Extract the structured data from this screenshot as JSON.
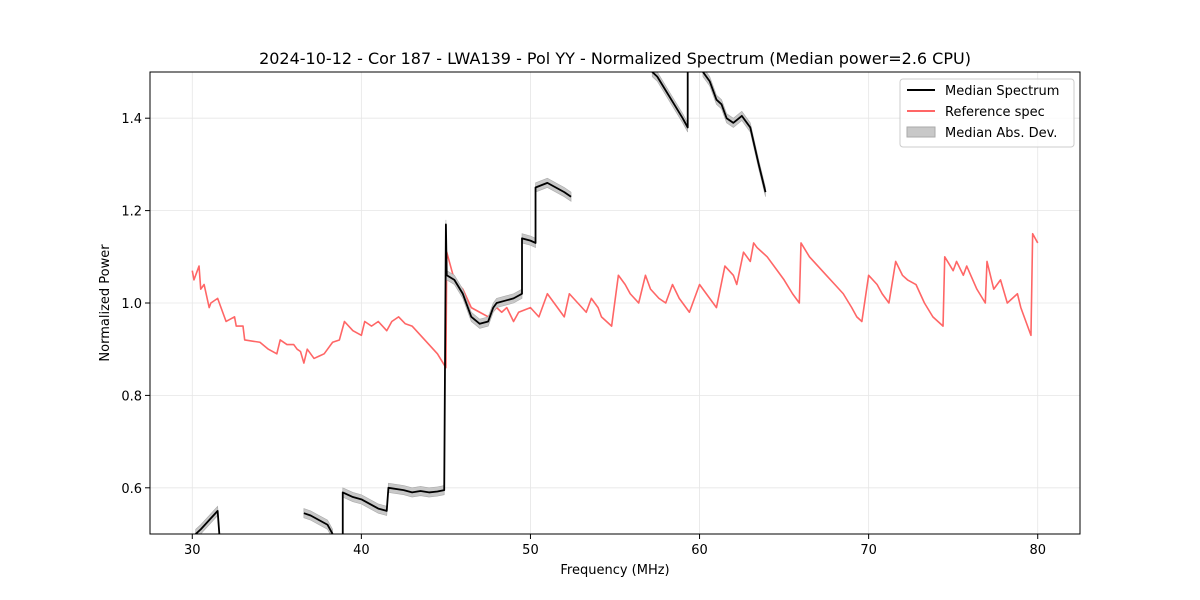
{
  "chart_data": {
    "type": "line",
    "title": "2024-10-12 - Cor 187 - LWA139 - Pol YY - Normalized Spectrum (Median power=2.6 CPU)",
    "xlabel": "Frequency (MHz)",
    "ylabel": "Normalized Power",
    "xlim": [
      27.5,
      82.5
    ],
    "ylim": [
      0.5,
      1.5
    ],
    "xticks": [
      30,
      40,
      50,
      60,
      70,
      80
    ],
    "yticks": [
      0.6,
      0.8,
      1.0,
      1.2,
      1.4
    ],
    "xtick_labels": [
      "30",
      "40",
      "50",
      "60",
      "70",
      "80"
    ],
    "ytick_labels": [
      "0.6",
      "0.8",
      "1.0",
      "1.2",
      "1.4"
    ],
    "grid": true,
    "legend_position": "upper right",
    "series": [
      {
        "name": "Median Spectrum",
        "color": "#000000",
        "segments": [
          [
            [
              30.2,
              0.5
            ],
            [
              30.5,
              0.51
            ],
            [
              31.0,
              0.53
            ],
            [
              31.5,
              0.55
            ],
            [
              31.6,
              0.5
            ]
          ],
          [
            [
              36.6,
              0.545
            ],
            [
              37.0,
              0.54
            ],
            [
              37.5,
              0.53
            ],
            [
              38.0,
              0.52
            ],
            [
              38.3,
              0.5
            ]
          ],
          [
            [
              38.9,
              0.5
            ],
            [
              38.9,
              0.59
            ],
            [
              39.5,
              0.58
            ],
            [
              40.0,
              0.575
            ],
            [
              40.5,
              0.565
            ],
            [
              41.0,
              0.555
            ],
            [
              41.5,
              0.55
            ],
            [
              41.6,
              0.6
            ],
            [
              42.5,
              0.595
            ],
            [
              43.0,
              0.59
            ],
            [
              43.5,
              0.593
            ],
            [
              44.0,
              0.59
            ],
            [
              44.5,
              0.592
            ],
            [
              44.9,
              0.595
            ],
            [
              45.0,
              1.17
            ],
            [
              45.05,
              1.06
            ],
            [
              45.5,
              1.05
            ],
            [
              46.0,
              1.02
            ],
            [
              46.5,
              0.97
            ],
            [
              47.0,
              0.955
            ],
            [
              47.5,
              0.96
            ],
            [
              47.8,
              0.99
            ],
            [
              48.0,
              1.0
            ],
            [
              48.5,
              1.005
            ],
            [
              49.0,
              1.01
            ],
            [
              49.5,
              1.02
            ],
            [
              49.5,
              1.14
            ],
            [
              50.0,
              1.135
            ],
            [
              50.3,
              1.13
            ],
            [
              50.3,
              1.25
            ],
            [
              51.0,
              1.26
            ],
            [
              51.5,
              1.25
            ],
            [
              52.0,
              1.24
            ],
            [
              52.4,
              1.23
            ]
          ],
          [
            [
              57.2,
              1.5
            ],
            [
              57.5,
              1.49
            ],
            [
              58.0,
              1.46
            ],
            [
              58.5,
              1.43
            ],
            [
              59.0,
              1.4
            ],
            [
              59.3,
              1.38
            ],
            [
              59.3,
              1.5
            ]
          ],
          [
            [
              60.2,
              1.5
            ],
            [
              60.6,
              1.48
            ],
            [
              61.0,
              1.44
            ],
            [
              61.3,
              1.43
            ],
            [
              61.6,
              1.4
            ],
            [
              62.0,
              1.39
            ],
            [
              62.5,
              1.405
            ],
            [
              63.0,
              1.38
            ],
            [
              63.5,
              1.3
            ],
            [
              63.9,
              1.24
            ]
          ]
        ]
      },
      {
        "name": "Reference spec",
        "color": "#ff6666",
        "x": [
          30.0,
          30.1,
          30.4,
          30.5,
          30.7,
          31.0,
          31.1,
          31.5,
          32.0,
          32.5,
          32.6,
          33.0,
          33.1,
          34.0,
          34.5,
          35.0,
          35.2,
          35.6,
          36.0,
          36.2,
          36.4,
          36.6,
          36.8,
          37.2,
          37.5,
          37.8,
          38.0,
          38.3,
          38.7,
          39.0,
          39.5,
          40.0,
          40.2,
          40.6,
          41.0,
          41.5,
          41.8,
          42.2,
          42.6,
          43.0,
          43.5,
          44.0,
          44.5,
          45.0,
          45.05,
          45.5,
          46.0,
          46.5,
          47.0,
          47.5,
          48.0,
          48.3,
          48.6,
          49.0,
          49.3,
          50.0,
          50.5,
          51.0,
          51.4,
          52.0,
          52.3,
          52.8,
          53.3,
          53.6,
          54.0,
          54.2,
          54.8,
          55.2,
          55.6,
          55.9,
          56.4,
          56.8,
          57.1,
          57.6,
          58.0,
          58.4,
          58.8,
          59.2,
          59.4,
          60.0,
          60.4,
          60.8,
          61.0,
          61.5,
          62.0,
          62.2,
          62.6,
          63.0,
          63.2,
          63.4,
          64.0,
          64.6,
          65.0,
          65.5,
          65.9,
          66.0,
          66.5,
          67.0,
          67.5,
          68.0,
          68.5,
          69.0,
          69.3,
          69.6,
          70.0,
          70.5,
          70.8,
          71.2,
          71.6,
          72.0,
          72.3,
          72.8,
          73.3,
          73.8,
          74.4,
          74.5,
          75.0,
          75.2,
          75.6,
          75.8,
          76.4,
          76.9,
          77.0,
          77.4,
          77.8,
          78.2,
          78.8,
          79.0,
          79.2,
          79.6,
          79.7,
          80.0
        ],
        "y": [
          1.07,
          1.05,
          1.08,
          1.03,
          1.04,
          0.99,
          1.0,
          1.01,
          0.96,
          0.97,
          0.95,
          0.95,
          0.92,
          0.915,
          0.9,
          0.89,
          0.92,
          0.91,
          0.91,
          0.9,
          0.895,
          0.87,
          0.9,
          0.88,
          0.885,
          0.89,
          0.9,
          0.915,
          0.92,
          0.96,
          0.94,
          0.93,
          0.96,
          0.95,
          0.96,
          0.94,
          0.96,
          0.97,
          0.955,
          0.95,
          0.93,
          0.91,
          0.89,
          0.86,
          1.11,
          1.05,
          1.03,
          0.99,
          0.98,
          0.97,
          0.99,
          0.98,
          0.99,
          0.96,
          0.98,
          0.99,
          0.97,
          1.02,
          1.0,
          0.97,
          1.02,
          1.0,
          0.98,
          1.01,
          0.99,
          0.97,
          0.95,
          1.06,
          1.04,
          1.02,
          1.0,
          1.06,
          1.03,
          1.01,
          1.0,
          1.04,
          1.01,
          0.99,
          0.98,
          1.04,
          1.02,
          1.0,
          0.99,
          1.08,
          1.06,
          1.04,
          1.11,
          1.09,
          1.13,
          1.12,
          1.1,
          1.07,
          1.05,
          1.02,
          1.0,
          1.13,
          1.1,
          1.08,
          1.06,
          1.04,
          1.02,
          0.99,
          0.97,
          0.96,
          1.06,
          1.04,
          1.02,
          1.0,
          1.09,
          1.06,
          1.05,
          1.04,
          1.0,
          0.97,
          0.95,
          1.1,
          1.07,
          1.09,
          1.06,
          1.08,
          1.03,
          1.0,
          1.09,
          1.03,
          1.05,
          1.0,
          1.02,
          0.99,
          0.97,
          0.93,
          1.15,
          1.13
        ],
        "gaps_after_index": []
      }
    ],
    "mad_band": {
      "name": "Median Abs. Dev.",
      "color": "#aaaaaa",
      "half_width": 0.01
    },
    "legend": [
      "Median Spectrum",
      "Reference spec",
      "Median Abs. Dev."
    ]
  }
}
